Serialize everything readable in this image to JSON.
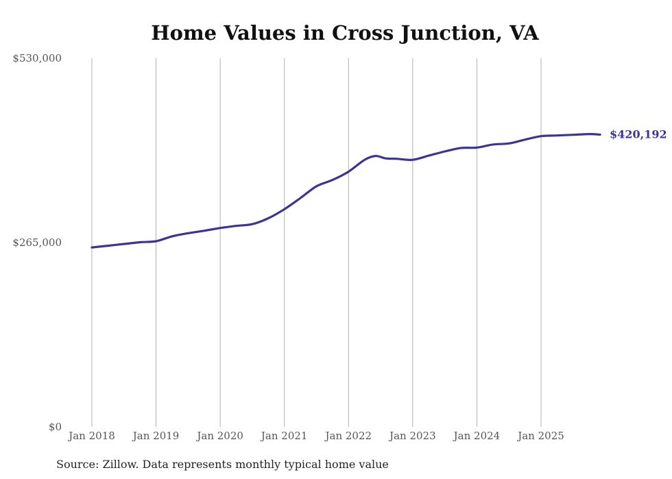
{
  "chart_data": {
    "type": "line",
    "title": "Home Values in Cross Junction, VA",
    "xlabel": "",
    "ylabel": "",
    "ylim": [
      0,
      530000
    ],
    "yticks": [
      {
        "value": 0,
        "label": "$0"
      },
      {
        "value": 265000,
        "label": "$265,000"
      },
      {
        "value": 530000,
        "label": "$530,000"
      }
    ],
    "xlim": [
      2018.0,
      2025.92
    ],
    "xticks": [
      {
        "value": 2018,
        "label": "Jan 2018"
      },
      {
        "value": 2019,
        "label": "Jan 2019"
      },
      {
        "value": 2020,
        "label": "Jan 2020"
      },
      {
        "value": 2021,
        "label": "Jan 2021"
      },
      {
        "value": 2022,
        "label": "Jan 2022"
      },
      {
        "value": 2023,
        "label": "Jan 2023"
      },
      {
        "value": 2024,
        "label": "Jan 2024"
      },
      {
        "value": 2025,
        "label": "Jan 2025"
      }
    ],
    "grid": {
      "vertical": true,
      "horizontal": false
    },
    "series": [
      {
        "name": "Typical home value",
        "color": "#3a3494",
        "x": [
          2018.0,
          2018.25,
          2018.5,
          2018.75,
          2019.0,
          2019.25,
          2019.5,
          2019.75,
          2020.0,
          2020.25,
          2020.5,
          2020.75,
          2021.0,
          2021.25,
          2021.5,
          2021.75,
          2022.0,
          2022.25,
          2022.42,
          2022.58,
          2022.75,
          2023.0,
          2023.25,
          2023.5,
          2023.75,
          2024.0,
          2024.25,
          2024.5,
          2024.75,
          2025.0,
          2025.25,
          2025.5,
          2025.75,
          2025.92
        ],
        "values": [
          258000,
          260500,
          263000,
          265500,
          267000,
          274000,
          278500,
          282000,
          286000,
          289000,
          291500,
          300000,
          313000,
          329000,
          346000,
          355000,
          367000,
          384000,
          389500,
          386000,
          385500,
          384000,
          390000,
          396000,
          401000,
          401500,
          406000,
          407500,
          413000,
          418000,
          419000,
          420000,
          421000,
          420192
        ]
      }
    ],
    "end_label": "$420,192",
    "legend": "none"
  },
  "footer": {
    "source": "Source: Zillow. Data represents monthly typical home value"
  }
}
